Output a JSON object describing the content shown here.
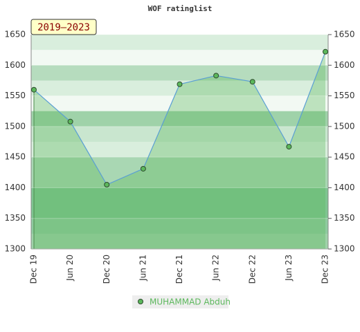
{
  "chart_data": {
    "type": "line",
    "title": "WOF ratinglist",
    "badge": "2019–2023",
    "categories": [
      "Dec 19",
      "Jun 20",
      "Dec 20",
      "Jun 21",
      "Dec 21",
      "Jun 22",
      "Dec 22",
      "Jun 23",
      "Dec 23"
    ],
    "series": [
      {
        "name": "MUHAMMAD Abduh",
        "color": "#5cb85c",
        "line_color": "#5a9fd4",
        "values": [
          1560,
          1508,
          1405,
          1431,
          1569,
          1583,
          1573,
          1467,
          1622
        ]
      }
    ],
    "ylim": [
      1300,
      1650
    ],
    "yticks": [
      1300,
      1350,
      1400,
      1450,
      1500,
      1550,
      1600,
      1650
    ],
    "grid": true
  }
}
